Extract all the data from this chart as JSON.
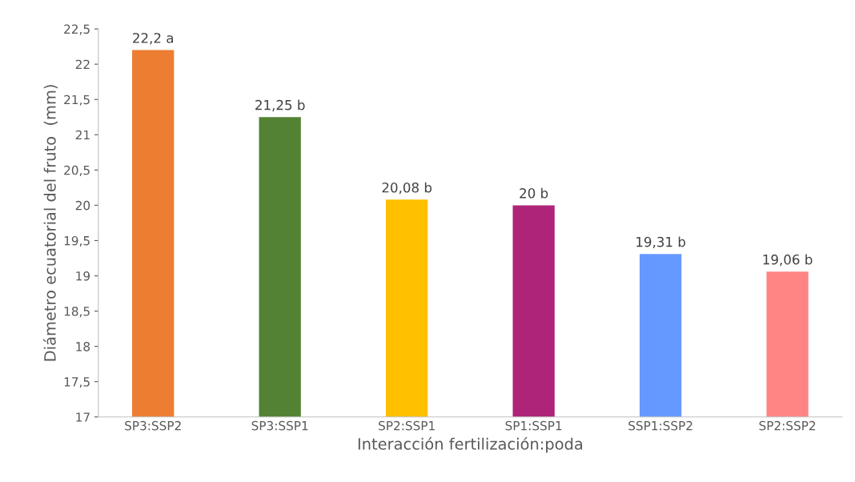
{
  "chart_data": {
    "type": "bar",
    "xlabel": "Interacción fertilización:poda",
    "ylabel": "Diámetro ecuatorial del fruto  (mm)",
    "categories": [
      "SP3:SSP2",
      "SP3:SSP1",
      "SP2:SSP1",
      "SP1:SSP1",
      "SSP1:SSP2",
      "SP2:SSP2"
    ],
    "values": [
      22.2,
      21.25,
      20.08,
      20,
      19.31,
      19.06
    ],
    "colors": [
      "#ed7d31",
      "#548235",
      "#ffc000",
      "#ae2478",
      "#6699ff",
      "#ff8585"
    ],
    "value_labels": [
      "22,2 a",
      "21,25 b",
      "20,08 b",
      "20 b",
      "19,31 b",
      "19,06 b"
    ],
    "ylim": [
      17,
      22.5
    ],
    "yticks": [
      17,
      {
        "value": 17.5,
        "label": "17,5"
      },
      18,
      {
        "value": 18.5,
        "label": "18,5"
      },
      19,
      {
        "value": 19.5,
        "label": "19,5"
      },
      20,
      {
        "value": 20.5,
        "label": "20,5"
      },
      21,
      {
        "value": 21.5,
        "label": "21,5"
      },
      22,
      {
        "value": 22.5,
        "label": "22,5"
      }
    ],
    "grid": false,
    "legend": false
  }
}
